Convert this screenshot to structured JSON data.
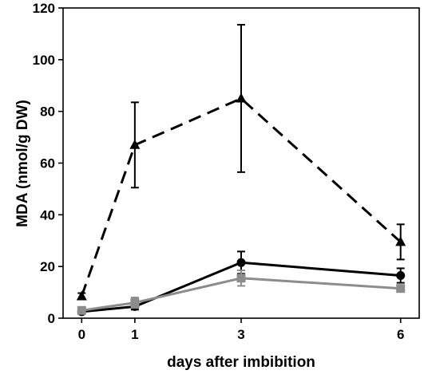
{
  "chart_data": {
    "type": "line",
    "title": "",
    "xlabel": "days after imbibition",
    "ylabel": "MDA (nmol/g DW)",
    "x": [
      0,
      1,
      3,
      6
    ],
    "xticks": [
      "0",
      "1",
      "3",
      "6"
    ],
    "yticks": [
      "0",
      "20",
      "40",
      "60",
      "80",
      "100",
      "120"
    ],
    "xlim": [
      -0.35,
      6.35
    ],
    "ylim": [
      0,
      120
    ],
    "grid": false,
    "legend": "none",
    "series": [
      {
        "marker": "triangle",
        "line_style": "dashed",
        "color": "#000000",
        "values": [
          8.5,
          67,
          85,
          29.5
        ],
        "errors": [
          1.2,
          16.5,
          28.5,
          6.8
        ]
      },
      {
        "marker": "circle",
        "line_style": "solid",
        "color": "#000000",
        "values": [
          2.5,
          4.5,
          21.5,
          16.5
        ],
        "errors": [
          0.5,
          1.2,
          4.3,
          2.8
        ]
      },
      {
        "marker": "square",
        "line_style": "solid",
        "color": "#8c8c8c",
        "values": [
          3.0,
          6.0,
          15.5,
          11.5
        ],
        "errors": [
          0.5,
          2.0,
          3.0,
          1.0
        ]
      }
    ]
  }
}
